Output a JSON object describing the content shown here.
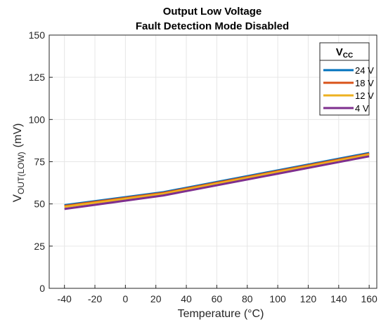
{
  "chart_data": {
    "type": "line",
    "title": "Output Low Voltage",
    "subtitle": "Fault Detection Mode Disabled",
    "xlabel": "Temperature (°C)",
    "ylabel": {
      "main": "V",
      "sub": "OUT(LOW)",
      "unit": "(mV)"
    },
    "xlim": [
      -50,
      165
    ],
    "ylim": [
      0,
      150
    ],
    "xticks": [
      "-40",
      "-20",
      "0",
      "20",
      "40",
      "60",
      "80",
      "100",
      "120",
      "140",
      "160"
    ],
    "yticks": [
      "0",
      "25",
      "50",
      "75",
      "100",
      "125",
      "150"
    ],
    "grid": true,
    "legend": {
      "title_main": "V",
      "title_sub": "CC",
      "placement": "top-right"
    },
    "series": [
      {
        "name": "24 V",
        "color": "#0072bd",
        "x": [
          -40,
          25,
          160
        ],
        "y": [
          49.3,
          57.0,
          80.2
        ]
      },
      {
        "name": "18 V",
        "color": "#d95319",
        "x": [
          -40,
          25,
          160
        ],
        "y": [
          48.8,
          56.5,
          79.7
        ]
      },
      {
        "name": "12 V",
        "color": "#edb120",
        "x": [
          -40,
          25,
          160
        ],
        "y": [
          48.3,
          56.0,
          79.2
        ]
      },
      {
        "name": "4 V",
        "color": "#7e2f8e",
        "x": [
          -40,
          25,
          160
        ],
        "y": [
          47.0,
          55.0,
          78.2
        ]
      }
    ]
  }
}
